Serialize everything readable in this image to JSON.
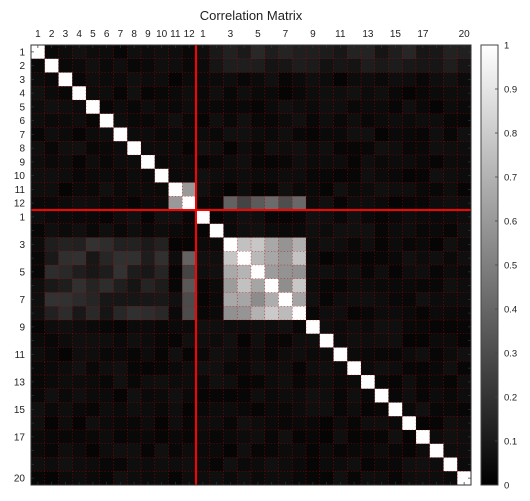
{
  "chart_data": {
    "type": "heatmap",
    "title": "Correlation Matrix",
    "colormap": "grayscale (0 = black, 1 = white)",
    "block_sizes": [
      12,
      20
    ],
    "tick_labels": {
      "top": [
        "1",
        "2",
        "3",
        "4",
        "5",
        "6",
        "7",
        "8",
        "9",
        "10",
        "11",
        "12",
        "1",
        "3",
        "5",
        "7",
        "9",
        "11",
        "13",
        "15",
        "17",
        "20"
      ],
      "left": [
        "1",
        "2",
        "3",
        "4",
        "5",
        "6",
        "7",
        "8",
        "9",
        "10",
        "11",
        "12",
        "1",
        "3",
        "5",
        "7",
        "9",
        "11",
        "13",
        "15",
        "17",
        "20"
      ]
    },
    "colorbar": {
      "min": 0,
      "max": 1,
      "ticks": [
        "0",
        "0.1",
        "0.2",
        "0.3",
        "0.4",
        "0.5",
        "0.6",
        "0.7",
        "0.8",
        "0.9",
        "1"
      ]
    },
    "diagonal": 1,
    "background_level": 0.05,
    "regions": [
      {
        "rows": "block1 row 12",
        "cols": "block2 cols 3-8",
        "level": 0.35
      },
      {
        "rows": "block2 rows 4-8",
        "cols": "block1 col 12",
        "level": 0.35
      },
      {
        "rows": "block2 rows 3-8",
        "cols": "block2 cols 3-8",
        "level": 0.7
      },
      {
        "rows": "block1 rows 11-12",
        "cols": "block1 cols 11-12",
        "level": 0.75
      }
    ],
    "divider_color": "#ff0000",
    "grid": "dotted red",
    "grid_color": "#c00000"
  }
}
